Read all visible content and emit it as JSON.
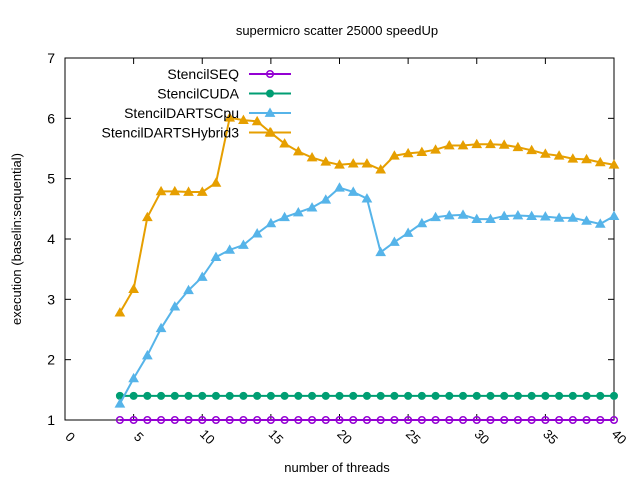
{
  "chart_data": {
    "type": "line",
    "title": "supermicro scatter 25000 speedUp",
    "xlabel": "number of threads",
    "ylabel": "execution (baselin:sequential)",
    "xlim": [
      0,
      40
    ],
    "ylim": [
      1,
      7
    ],
    "xticks": [
      0,
      5,
      10,
      15,
      20,
      25,
      30,
      35,
      40
    ],
    "yticks": [
      1,
      2,
      3,
      4,
      5,
      6,
      7
    ],
    "grid": false,
    "legend_position": "top-left",
    "x": [
      4,
      5,
      6,
      7,
      8,
      9,
      10,
      11,
      12,
      13,
      14,
      15,
      16,
      17,
      18,
      19,
      20,
      21,
      22,
      23,
      24,
      25,
      26,
      27,
      28,
      29,
      30,
      31,
      32,
      33,
      34,
      35,
      36,
      37,
      38,
      39,
      40
    ],
    "series": [
      {
        "name": "StencilSEQ",
        "color": "#9400d3",
        "marker": "circle-open",
        "values": [
          1,
          1,
          1,
          1,
          1,
          1,
          1,
          1,
          1,
          1,
          1,
          1,
          1,
          1,
          1,
          1,
          1,
          1,
          1,
          1,
          1,
          1,
          1,
          1,
          1,
          1,
          1,
          1,
          1,
          1,
          1,
          1,
          1,
          1,
          1,
          1,
          1
        ]
      },
      {
        "name": "StencilCUDA",
        "color": "#009e73",
        "marker": "circle-filled",
        "values": [
          1.4,
          1.4,
          1.4,
          1.4,
          1.4,
          1.4,
          1.4,
          1.4,
          1.4,
          1.4,
          1.4,
          1.4,
          1.4,
          1.4,
          1.4,
          1.4,
          1.4,
          1.4,
          1.4,
          1.4,
          1.4,
          1.4,
          1.4,
          1.4,
          1.4,
          1.4,
          1.4,
          1.4,
          1.4,
          1.4,
          1.4,
          1.4,
          1.4,
          1.4,
          1.4,
          1.4,
          1.4
        ]
      },
      {
        "name": "StencilDARTSCpu",
        "color": "#56b4e9",
        "marker": "triangle-filled",
        "values": [
          1.27,
          1.69,
          2.07,
          2.52,
          2.88,
          3.15,
          3.37,
          3.7,
          3.82,
          3.9,
          4.09,
          4.26,
          4.36,
          4.44,
          4.52,
          4.65,
          4.85,
          4.78,
          4.67,
          3.78,
          3.95,
          4.1,
          4.26,
          4.36,
          4.39,
          4.4,
          4.33,
          4.33,
          4.38,
          4.39,
          4.38,
          4.37,
          4.35,
          4.35,
          4.3,
          4.25,
          4.38
        ]
      },
      {
        "name": "StencilDARTSHybrid3",
        "color": "#e69f00",
        "marker": "triangle-filled",
        "values": [
          2.78,
          3.17,
          4.36,
          4.79,
          4.79,
          4.78,
          4.78,
          4.93,
          6.01,
          5.97,
          5.95,
          5.76,
          5.58,
          5.45,
          5.35,
          5.28,
          5.23,
          5.25,
          5.25,
          5.15,
          5.38,
          5.42,
          5.44,
          5.48,
          5.55,
          5.55,
          5.57,
          5.57,
          5.56,
          5.52,
          5.47,
          5.41,
          5.38,
          5.33,
          5.32,
          5.27,
          5.23
        ]
      }
    ]
  }
}
